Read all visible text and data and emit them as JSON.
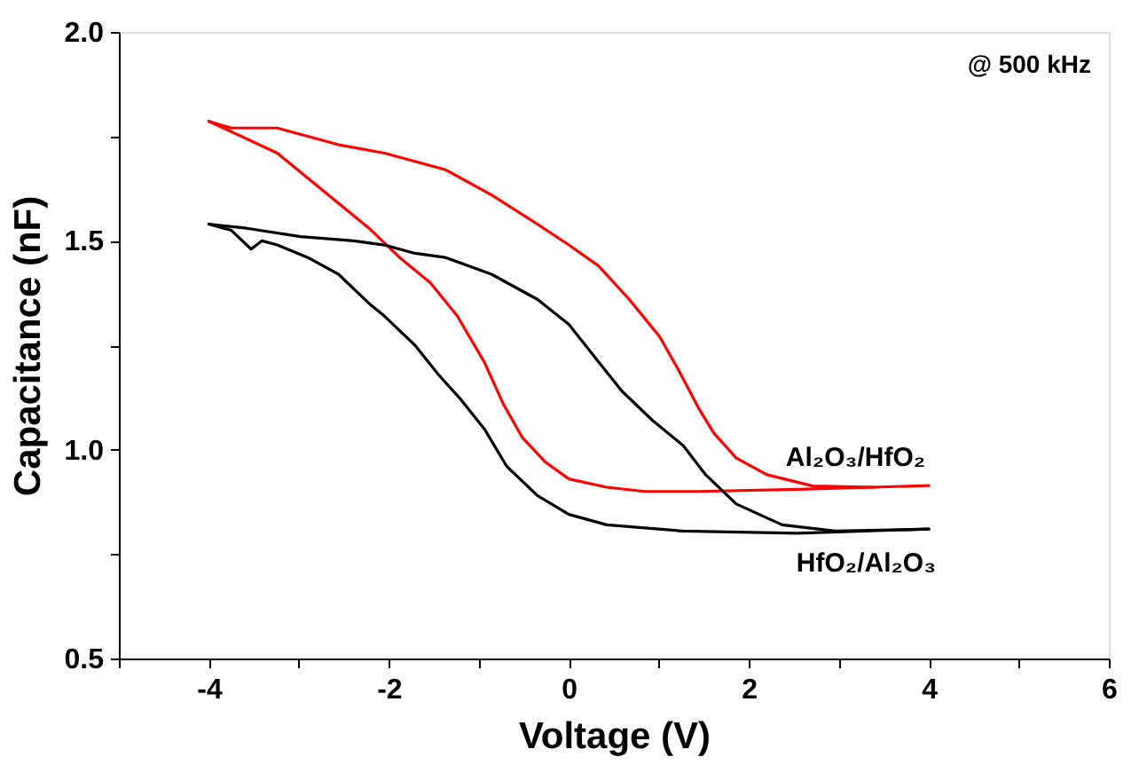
{
  "chart_data": {
    "type": "line",
    "xlabel": "Voltage (V)",
    "ylabel": "Capacitance (nF)",
    "xlim": [
      -5,
      6
    ],
    "ylim": [
      0.5,
      2.0
    ],
    "xticks": [
      {
        "value": -5,
        "label": null
      },
      -4,
      {
        "value": -3,
        "label": null
      },
      -2,
      {
        "value": -1,
        "label": null
      },
      0,
      {
        "value": 1,
        "label": null
      },
      2,
      {
        "value": 3,
        "label": null
      },
      4,
      {
        "value": 5,
        "label": null
      },
      6
    ],
    "yticks": [
      {
        "value": 0.5,
        "label": "0.5"
      },
      {
        "value": 0.75,
        "label": null
      },
      {
        "value": 1.0,
        "label": "1.0"
      },
      {
        "value": 1.25,
        "label": null
      },
      {
        "value": 1.5,
        "label": "1.5"
      },
      {
        "value": 1.75,
        "label": null
      },
      {
        "value": 2.0,
        "label": "2.0"
      }
    ],
    "grid": false,
    "legend": false,
    "marker": "none",
    "line_style": "solid",
    "annotations": [
      "@ 500 kHz"
    ],
    "series": [
      {
        "name": "Al₂O₃/HfO₂",
        "color": "#ff0000",
        "x": [
          -4,
          -3.24,
          -2.9,
          -2.56,
          -2.22,
          -1.88,
          -1.54,
          -1.24,
          -0.94,
          -0.73,
          -0.52,
          -0.26,
          0,
          0.42,
          0.84,
          1.44,
          2.54,
          4
        ],
        "values": [
          1.786,
          1.71,
          1.65,
          1.59,
          1.53,
          1.46,
          1.4,
          1.32,
          1.21,
          1.11,
          1.03,
          0.97,
          0.93,
          0.91,
          0.9,
          0.9,
          0.905,
          0.914
        ]
      },
      {
        "color": "#ff0000",
        "x": [
          3.39,
          2.71,
          2.2,
          1.86,
          1.61,
          1.44,
          1.22,
          1.01,
          0.67,
          0.33,
          0,
          -0.35,
          -0.86,
          -1.37,
          -2.05,
          -2.56,
          -3.24,
          -3.75,
          -4
        ],
        "values": [
          0.91,
          0.913,
          0.94,
          0.98,
          1.04,
          1.1,
          1.19,
          1.27,
          1.36,
          1.44,
          1.49,
          1.54,
          1.61,
          1.67,
          1.71,
          1.73,
          1.77,
          1.77,
          1.786
        ]
      },
      {
        "name": "HfO₂/Al₂O₃",
        "color": "#000000",
        "x": [
          -4,
          -3.75,
          -3.53,
          -3.41,
          -3.24,
          -2.9,
          -2.56,
          -2.22,
          -2.05,
          -1.71,
          -1.45,
          -1.2,
          -0.94,
          -0.69,
          -0.35,
          0,
          0.42,
          1.27,
          2.54,
          4
        ],
        "values": [
          1.54,
          1.525,
          1.48,
          1.5,
          1.49,
          1.46,
          1.42,
          1.35,
          1.32,
          1.25,
          1.18,
          1.12,
          1.05,
          0.96,
          0.89,
          0.845,
          0.82,
          0.805,
          0.8,
          0.81
        ]
      },
      {
        "color": "#000000",
        "x": [
          4,
          2.96,
          2.37,
          1.86,
          1.52,
          1.27,
          0.93,
          0.59,
          0.33,
          0,
          -0.35,
          -0.86,
          -1.37,
          -1.71,
          -2.05,
          -2.39,
          -2.98,
          -3.58,
          -4
        ],
        "values": [
          0.81,
          0.805,
          0.82,
          0.87,
          0.94,
          1.01,
          1.07,
          1.14,
          1.21,
          1.3,
          1.36,
          1.42,
          1.46,
          1.47,
          1.49,
          1.5,
          1.51,
          1.53,
          1.54
        ]
      }
    ]
  }
}
